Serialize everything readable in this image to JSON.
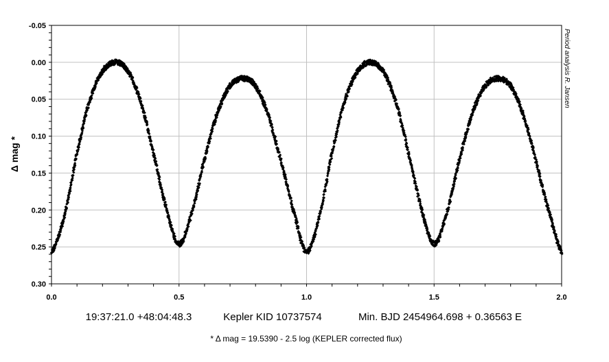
{
  "chart_data": {
    "type": "scatter",
    "title": "",
    "xlabel": "",
    "ylabel": "Δ mag *",
    "xlim": [
      0.0,
      2.0
    ],
    "ylim": [
      -0.05,
      0.3
    ],
    "y_inverted": true,
    "grid": true,
    "x_ticks": [
      0.0,
      0.5,
      1.0,
      1.5,
      2.0
    ],
    "x_tick_labels": [
      "0.0",
      "0.5",
      "1.0",
      "1.5",
      "2.0"
    ],
    "y_ticks": [
      -0.05,
      0.0,
      0.05,
      0.1,
      0.15,
      0.2,
      0.25,
      0.3
    ],
    "y_tick_labels": [
      "-0.05",
      "0.00",
      "0.05",
      "0.10",
      "0.15",
      "0.20",
      "0.25",
      "0.30"
    ],
    "series": [
      {
        "color": "#000000",
        "marker": "diamond",
        "x": [
          0.0,
          0.05,
          0.1,
          0.15,
          0.2,
          0.25,
          0.3,
          0.35,
          0.4,
          0.45,
          0.5,
          0.55,
          0.6,
          0.65,
          0.7,
          0.75,
          0.8,
          0.85,
          0.9,
          0.95,
          1.0,
          1.05,
          1.1,
          1.15,
          1.2,
          1.25,
          1.3,
          1.35,
          1.4,
          1.45,
          1.5,
          1.55,
          1.6,
          1.65,
          1.7,
          1.75,
          1.8,
          1.85,
          1.9,
          1.95,
          2.0
        ],
        "y": [
          0.257,
          0.209,
          0.123,
          0.052,
          0.012,
          0.0,
          0.012,
          0.054,
          0.123,
          0.198,
          0.246,
          0.204,
          0.131,
          0.069,
          0.032,
          0.022,
          0.032,
          0.072,
          0.134,
          0.202,
          0.257,
          0.209,
          0.123,
          0.052,
          0.012,
          0.0,
          0.012,
          0.054,
          0.123,
          0.198,
          0.246,
          0.204,
          0.131,
          0.069,
          0.032,
          0.022,
          0.032,
          0.072,
          0.134,
          0.202,
          0.257
        ]
      }
    ],
    "side_note": "Period analysis  R. Jansen",
    "info_line": [
      "19:37:21.0 +48:04:48.3",
      "Kepler KID 10737574",
      "Min. BJD 2454964.698 + 0.36563 E"
    ],
    "footnote": "* Δ mag = 19.5390 - 2.5 log (KEPLER corrected flux)"
  }
}
